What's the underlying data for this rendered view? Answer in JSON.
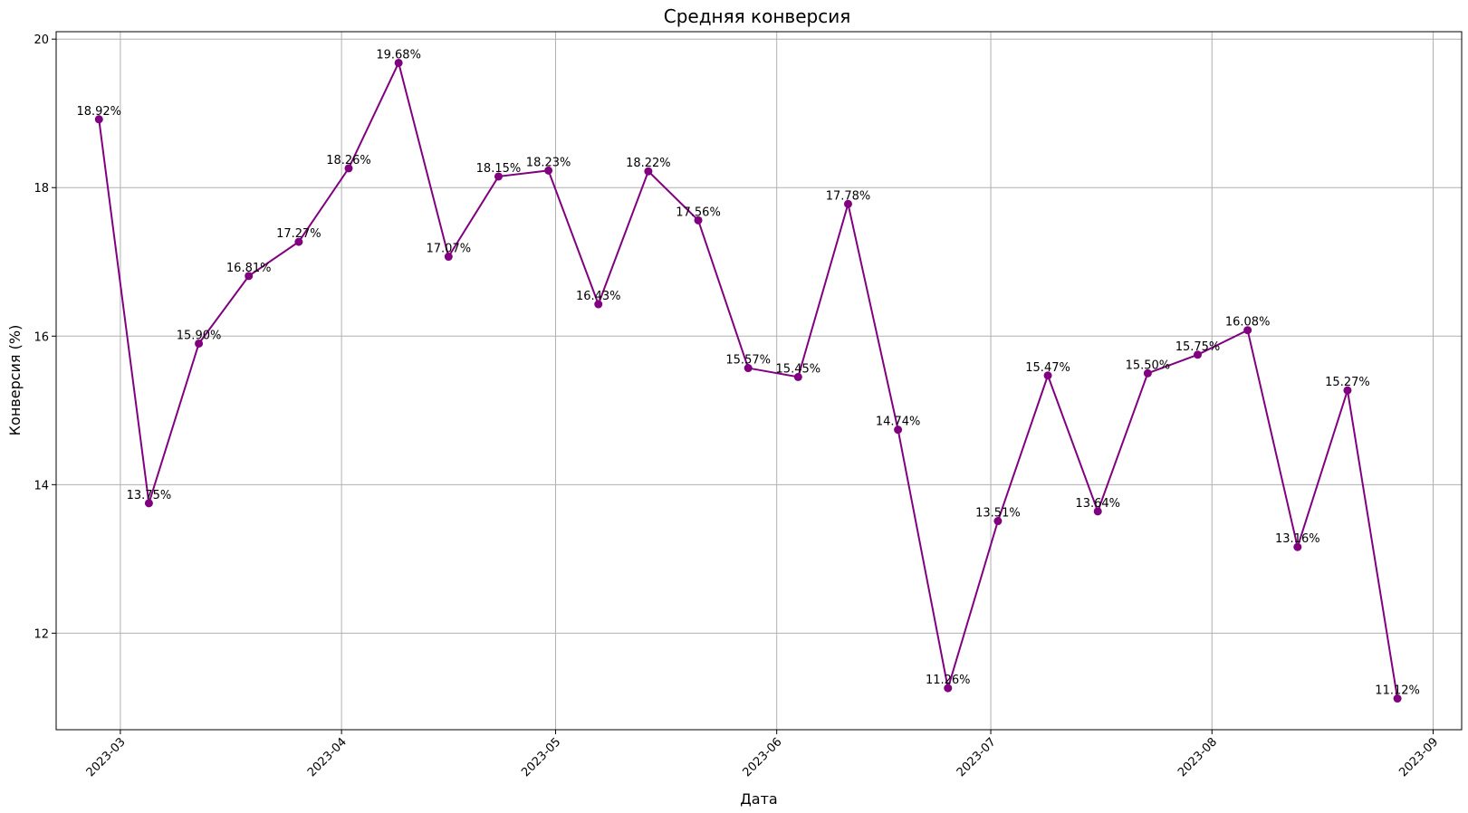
{
  "chart_data": {
    "type": "line",
    "title": "Средняя конверсия",
    "xlabel": "Дата",
    "ylabel": "Конверсия (%)",
    "x_ticks": [
      "2023-03",
      "2023-04",
      "2023-05",
      "2023-06",
      "2023-07",
      "2023-08",
      "2023-09"
    ],
    "y_ticks": [
      12,
      14,
      16,
      18,
      20
    ],
    "xlim": [
      "2023-02-20",
      "2023-09-05"
    ],
    "ylim": [
      10.7,
      20.1
    ],
    "grid": true,
    "series": [
      {
        "color": "#800080",
        "marker": "circle",
        "points": [
          {
            "x": "2023-02-26",
            "y": 18.92,
            "label": "18.92%"
          },
          {
            "x": "2023-03-05",
            "y": 13.75,
            "label": "13.75%"
          },
          {
            "x": "2023-03-12",
            "y": 15.9,
            "label": "15.90%"
          },
          {
            "x": "2023-03-19",
            "y": 16.81,
            "label": "16.81%"
          },
          {
            "x": "2023-03-26",
            "y": 17.27,
            "label": "17.27%"
          },
          {
            "x": "2023-04-02",
            "y": 18.26,
            "label": "18.26%"
          },
          {
            "x": "2023-04-09",
            "y": 19.68,
            "label": "19.68%"
          },
          {
            "x": "2023-04-16",
            "y": 17.07,
            "label": "17.07%"
          },
          {
            "x": "2023-04-23",
            "y": 18.15,
            "label": "18.15%"
          },
          {
            "x": "2023-04-30",
            "y": 18.23,
            "label": "18.23%"
          },
          {
            "x": "2023-05-07",
            "y": 16.43,
            "label": "16.43%"
          },
          {
            "x": "2023-05-14",
            "y": 18.22,
            "label": "18.22%"
          },
          {
            "x": "2023-05-21",
            "y": 17.56,
            "label": "17.56%"
          },
          {
            "x": "2023-05-28",
            "y": 15.57,
            "label": "15.57%"
          },
          {
            "x": "2023-06-04",
            "y": 15.45,
            "label": "15.45%"
          },
          {
            "x": "2023-06-11",
            "y": 17.78,
            "label": "17.78%"
          },
          {
            "x": "2023-06-18",
            "y": 14.74,
            "label": "14.74%"
          },
          {
            "x": "2023-06-25",
            "y": 11.26,
            "label": "11.26%"
          },
          {
            "x": "2023-07-02",
            "y": 13.51,
            "label": "13.51%"
          },
          {
            "x": "2023-07-09",
            "y": 15.47,
            "label": "15.47%"
          },
          {
            "x": "2023-07-16",
            "y": 13.64,
            "label": "13.64%"
          },
          {
            "x": "2023-07-23",
            "y": 15.5,
            "label": "15.50%"
          },
          {
            "x": "2023-07-30",
            "y": 15.75,
            "label": "15.75%"
          },
          {
            "x": "2023-08-06",
            "y": 16.08,
            "label": "16.08%"
          },
          {
            "x": "2023-08-13",
            "y": 13.16,
            "label": "13.16%"
          },
          {
            "x": "2023-08-20",
            "y": 15.27,
            "label": "15.27%"
          },
          {
            "x": "2023-08-27",
            "y": 11.12,
            "label": "11.12%"
          }
        ]
      }
    ]
  }
}
